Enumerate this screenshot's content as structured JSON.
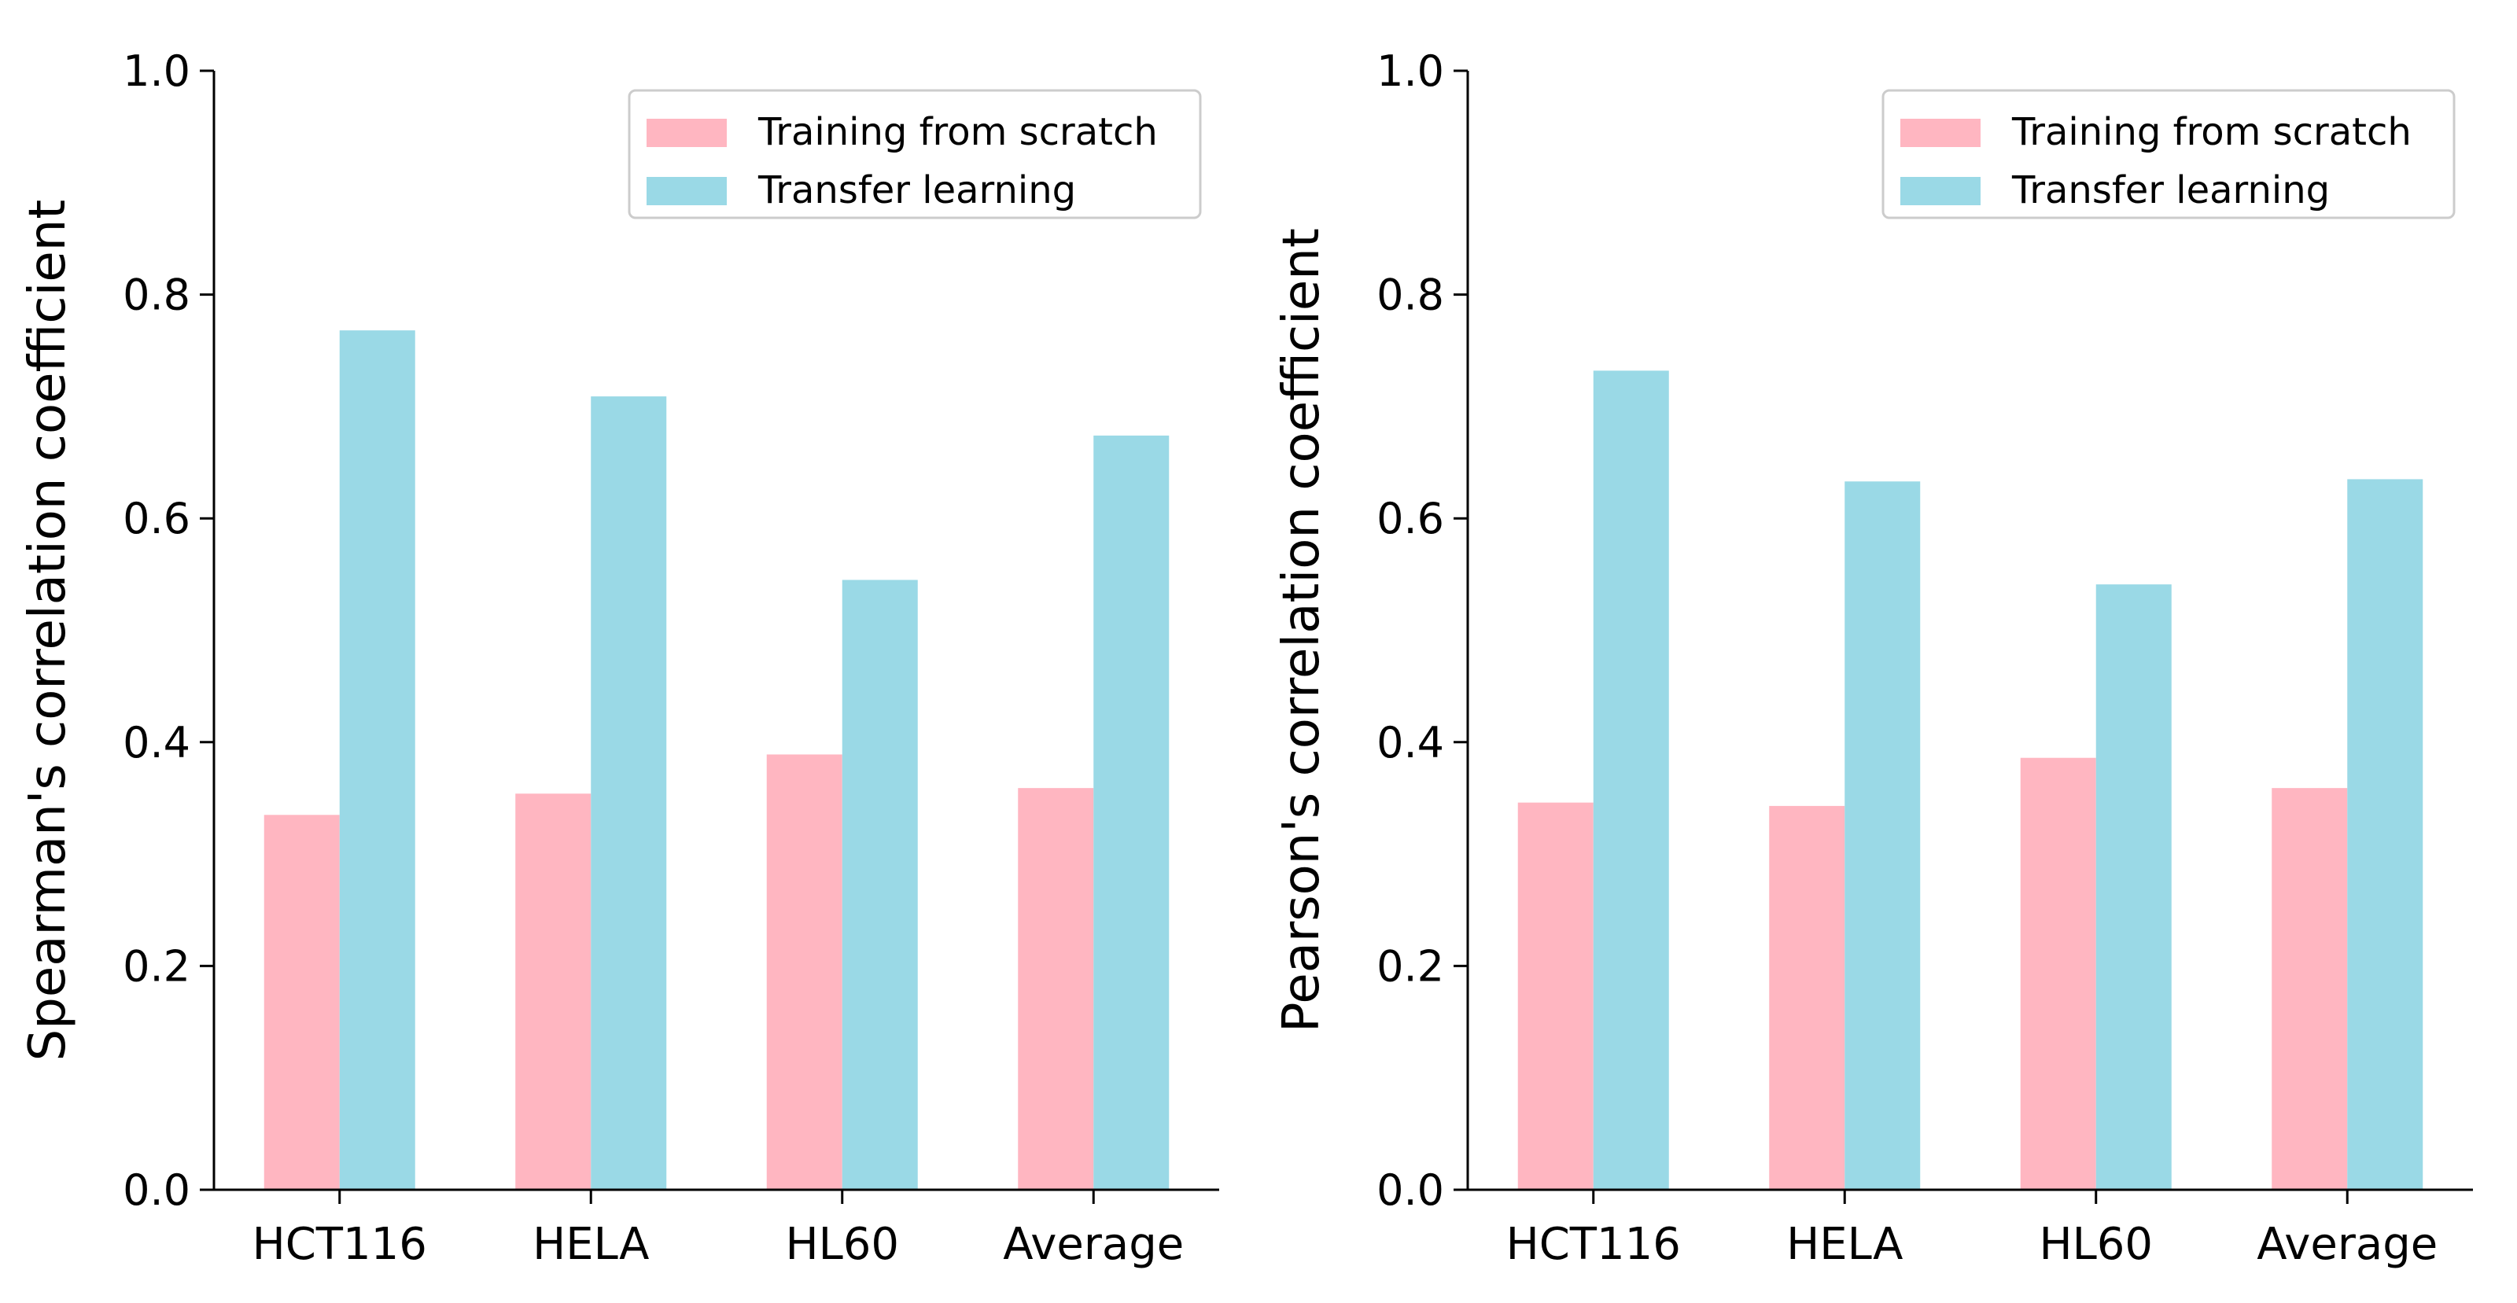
{
  "colors": {
    "scratch": "#ffb6c1",
    "transfer": "#9ad9e6",
    "axis": "#000000",
    "legend_border": "#cccccc"
  },
  "chart_data": [
    {
      "type": "bar",
      "ylabel": "Spearman's correlation coefficient",
      "xlabel": "",
      "title": "",
      "categories": [
        "HCT116",
        "HELA",
        "HL60",
        "Average"
      ],
      "series": [
        {
          "name": "Training from scratch",
          "values": [
            0.335,
            0.354,
            0.389,
            0.359
          ]
        },
        {
          "name": "Transfer learning",
          "values": [
            0.768,
            0.709,
            0.545,
            0.674
          ]
        }
      ],
      "ylim": [
        0,
        1.0
      ],
      "yticks": [
        "0.0",
        "0.2",
        "0.4",
        "0.6",
        "0.8",
        "1.0"
      ],
      "legend_position": "top-right",
      "grid": false
    },
    {
      "type": "bar",
      "ylabel": "Pearson's correlation coefficient",
      "xlabel": "",
      "title": "",
      "categories": [
        "HCT116",
        "HELA",
        "HL60",
        "Average"
      ],
      "series": [
        {
          "name": "Training from scratch",
          "values": [
            0.346,
            0.343,
            0.386,
            0.359
          ]
        },
        {
          "name": "Transfer learning",
          "values": [
            0.732,
            0.633,
            0.541,
            0.635
          ]
        }
      ],
      "ylim": [
        0,
        1.0
      ],
      "yticks": [
        "0.0",
        "0.2",
        "0.4",
        "0.6",
        "0.8",
        "1.0"
      ],
      "legend_position": "top-right",
      "grid": false
    }
  ]
}
